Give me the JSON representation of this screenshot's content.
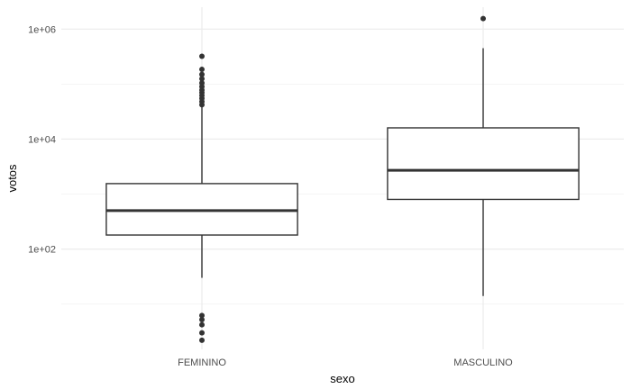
{
  "chart_data": {
    "type": "boxplot",
    "title": "",
    "xlabel": "sexo",
    "ylabel": "votos",
    "y_scale": "log10",
    "ylim": [
      1.5,
      2500000
    ],
    "y_ticks": [
      {
        "value": 100,
        "label": "1e+02"
      },
      {
        "value": 10000,
        "label": "1e+04"
      },
      {
        "value": 1000000,
        "label": "1e+06"
      }
    ],
    "grid": true,
    "categories": [
      "FEMININO",
      "MASCULINO"
    ],
    "boxes": [
      {
        "category": "FEMININO",
        "whisker_low": 30,
        "q1": 180,
        "median": 500,
        "q3": 1550,
        "whisker_high": 38000,
        "outliers": [
          2.2,
          3.0,
          4.2,
          5.2,
          6.2,
          42000,
          48000,
          55000,
          62000,
          70000,
          78000,
          90000,
          105000,
          125000,
          150000,
          185000,
          320000
        ]
      },
      {
        "category": "MASCULINO",
        "whisker_low": 14,
        "q1": 800,
        "median": 2700,
        "q3": 16000,
        "whisker_high": 450000,
        "outliers": [
          1550000
        ]
      }
    ]
  }
}
